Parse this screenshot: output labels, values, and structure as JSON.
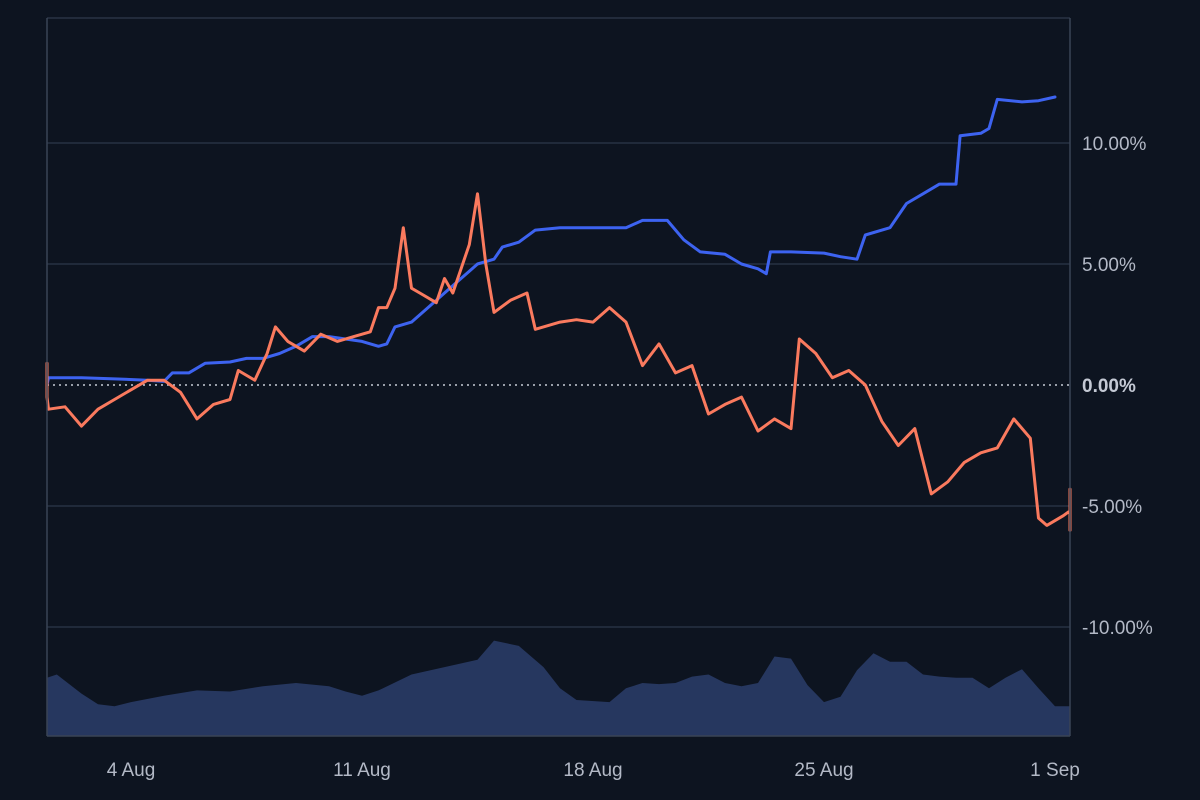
{
  "chart_data": {
    "type": "line",
    "title": "",
    "xlabel": "",
    "ylabel": "",
    "x_range": [
      "2024-08-01",
      "2024-09-01"
    ],
    "ylim": [
      -12,
      15
    ],
    "y_axis_position": "right",
    "y_unit": "%",
    "grid": "horizontal",
    "legend": "none",
    "x_ticks": [
      {
        "date": "2024-08-04",
        "label": "4 Aug"
      },
      {
        "date": "2024-08-11",
        "label": "11 Aug"
      },
      {
        "date": "2024-08-18",
        "label": "18 Aug"
      },
      {
        "date": "2024-08-25",
        "label": "25 Aug"
      },
      {
        "date": "2024-09-01",
        "label": "1 Sep"
      }
    ],
    "y_ticks": [
      {
        "value": 10,
        "label": "10.00%"
      },
      {
        "value": 5,
        "label": "5.00%"
      },
      {
        "value": 0,
        "label": "0.00%"
      },
      {
        "value": -5,
        "label": "-5.00%"
      },
      {
        "value": -10,
        "label": "-10.00%"
      }
    ],
    "zero_line": {
      "style": "dotted",
      "color": "#c7ccd6"
    },
    "series": [
      {
        "color": "#3d63f0",
        "points": [
          [
            "2024-08-01T00:00",
            0.0
          ],
          [
            "2024-08-01T12:00",
            0.3
          ],
          [
            "2024-08-02T12:00",
            0.3
          ],
          [
            "2024-08-03T12:00",
            0.25
          ],
          [
            "2024-08-04T12:00",
            0.2
          ],
          [
            "2024-08-05T00:00",
            0.15
          ],
          [
            "2024-08-05T06:00",
            0.5
          ],
          [
            "2024-08-05T18:00",
            0.5
          ],
          [
            "2024-08-06T06:00",
            0.9
          ],
          [
            "2024-08-07T00:00",
            0.95
          ],
          [
            "2024-08-07T12:00",
            1.1
          ],
          [
            "2024-08-08T00:00",
            1.1
          ],
          [
            "2024-08-08T12:00",
            1.3
          ],
          [
            "2024-08-09T00:00",
            1.6
          ],
          [
            "2024-08-09T12:00",
            2.0
          ],
          [
            "2024-08-10T00:00",
            2.0
          ],
          [
            "2024-08-10T12:00",
            1.9
          ],
          [
            "2024-08-11T00:00",
            1.8
          ],
          [
            "2024-08-11T12:00",
            1.6
          ],
          [
            "2024-08-11T18:00",
            1.7
          ],
          [
            "2024-08-12T00:00",
            2.4
          ],
          [
            "2024-08-12T12:00",
            2.6
          ],
          [
            "2024-08-13T00:00",
            3.2
          ],
          [
            "2024-08-13T12:00",
            3.8
          ],
          [
            "2024-08-14T00:00",
            4.4
          ],
          [
            "2024-08-14T06:00",
            4.7
          ],
          [
            "2024-08-14T12:00",
            5.0
          ],
          [
            "2024-08-15T00:00",
            5.2
          ],
          [
            "2024-08-15T06:00",
            5.7
          ],
          [
            "2024-08-15T18:00",
            5.9
          ],
          [
            "2024-08-16T06:00",
            6.4
          ],
          [
            "2024-08-17T00:00",
            6.5
          ],
          [
            "2024-08-18T00:00",
            6.5
          ],
          [
            "2024-08-19T00:00",
            6.5
          ],
          [
            "2024-08-19T12:00",
            6.8
          ],
          [
            "2024-08-20T06:00",
            6.8
          ],
          [
            "2024-08-20T18:00",
            6.0
          ],
          [
            "2024-08-21T06:00",
            5.5
          ],
          [
            "2024-08-22T00:00",
            5.4
          ],
          [
            "2024-08-22T12:00",
            5.0
          ],
          [
            "2024-08-23T00:00",
            4.8
          ],
          [
            "2024-08-23T06:00",
            4.6
          ],
          [
            "2024-08-23T09:00",
            5.5
          ],
          [
            "2024-08-24T00:00",
            5.5
          ],
          [
            "2024-08-25T00:00",
            5.45
          ],
          [
            "2024-08-25T12:00",
            5.3
          ],
          [
            "2024-08-26T00:00",
            5.2
          ],
          [
            "2024-08-26T06:00",
            6.2
          ],
          [
            "2024-08-27T00:00",
            6.5
          ],
          [
            "2024-08-27T12:00",
            7.5
          ],
          [
            "2024-08-28T00:00",
            7.9
          ],
          [
            "2024-08-28T12:00",
            8.3
          ],
          [
            "2024-08-29T00:00",
            8.3
          ],
          [
            "2024-08-29T03:00",
            10.3
          ],
          [
            "2024-08-29T18:00",
            10.4
          ],
          [
            "2024-08-30T00:00",
            10.6
          ],
          [
            "2024-08-30T06:00",
            11.8
          ],
          [
            "2024-08-31T00:00",
            11.7
          ],
          [
            "2024-08-31T12:00",
            11.75
          ],
          [
            "2024-09-01T00:00",
            11.9
          ]
        ]
      },
      {
        "color": "#fa7a5e",
        "points": [
          [
            "2024-08-01T00:00",
            0.0
          ],
          [
            "2024-08-01T03:00",
            0.9
          ],
          [
            "2024-08-01T06:00",
            -0.5
          ],
          [
            "2024-08-01T12:00",
            -1.0
          ],
          [
            "2024-08-02T00:00",
            -0.9
          ],
          [
            "2024-08-02T12:00",
            -1.7
          ],
          [
            "2024-08-03T00:00",
            -1.0
          ],
          [
            "2024-08-03T12:00",
            -0.6
          ],
          [
            "2024-08-04T00:00",
            -0.2
          ],
          [
            "2024-08-04T12:00",
            0.2
          ],
          [
            "2024-08-05T00:00",
            0.2
          ],
          [
            "2024-08-05T12:00",
            -0.3
          ],
          [
            "2024-08-06T00:00",
            -1.4
          ],
          [
            "2024-08-06T12:00",
            -0.8
          ],
          [
            "2024-08-07T00:00",
            -0.6
          ],
          [
            "2024-08-07T06:00",
            0.6
          ],
          [
            "2024-08-07T18:00",
            0.2
          ],
          [
            "2024-08-08T03:00",
            1.3
          ],
          [
            "2024-08-08T09:00",
            2.4
          ],
          [
            "2024-08-08T18:00",
            1.8
          ],
          [
            "2024-08-09T06:00",
            1.4
          ],
          [
            "2024-08-09T18:00",
            2.1
          ],
          [
            "2024-08-10T06:00",
            1.8
          ],
          [
            "2024-08-10T18:00",
            2.0
          ],
          [
            "2024-08-11T06:00",
            2.2
          ],
          [
            "2024-08-11T12:00",
            3.2
          ],
          [
            "2024-08-11T18:00",
            3.2
          ],
          [
            "2024-08-12T00:00",
            4.0
          ],
          [
            "2024-08-12T06:00",
            6.5
          ],
          [
            "2024-08-12T12:00",
            4.0
          ],
          [
            "2024-08-12T18:00",
            3.8
          ],
          [
            "2024-08-13T06:00",
            3.4
          ],
          [
            "2024-08-13T12:00",
            4.4
          ],
          [
            "2024-08-13T18:00",
            3.8
          ],
          [
            "2024-08-14T06:00",
            5.8
          ],
          [
            "2024-08-14T12:00",
            7.9
          ],
          [
            "2024-08-14T18:00",
            5.0
          ],
          [
            "2024-08-15T00:00",
            3.0
          ],
          [
            "2024-08-15T12:00",
            3.5
          ],
          [
            "2024-08-16T00:00",
            3.8
          ],
          [
            "2024-08-16T06:00",
            2.3
          ],
          [
            "2024-08-17T00:00",
            2.6
          ],
          [
            "2024-08-17T12:00",
            2.7
          ],
          [
            "2024-08-18T00:00",
            2.6
          ],
          [
            "2024-08-18T12:00",
            3.2
          ],
          [
            "2024-08-19T00:00",
            2.6
          ],
          [
            "2024-08-19T12:00",
            0.8
          ],
          [
            "2024-08-20T00:00",
            1.7
          ],
          [
            "2024-08-20T12:00",
            0.5
          ],
          [
            "2024-08-21T00:00",
            0.8
          ],
          [
            "2024-08-21T12:00",
            -1.2
          ],
          [
            "2024-08-22T00:00",
            -0.8
          ],
          [
            "2024-08-22T12:00",
            -0.5
          ],
          [
            "2024-08-23T00:00",
            -1.9
          ],
          [
            "2024-08-23T12:00",
            -1.4
          ],
          [
            "2024-08-24T00:00",
            -1.8
          ],
          [
            "2024-08-24T06:00",
            1.9
          ],
          [
            "2024-08-24T18:00",
            1.3
          ],
          [
            "2024-08-25T06:00",
            0.3
          ],
          [
            "2024-08-25T18:00",
            0.6
          ],
          [
            "2024-08-26T06:00",
            0.0
          ],
          [
            "2024-08-26T18:00",
            -1.5
          ],
          [
            "2024-08-27T06:00",
            -2.5
          ],
          [
            "2024-08-27T18:00",
            -1.8
          ],
          [
            "2024-08-28T06:00",
            -4.5
          ],
          [
            "2024-08-28T18:00",
            -4.0
          ],
          [
            "2024-08-29T06:00",
            -3.2
          ],
          [
            "2024-08-29T18:00",
            -2.8
          ],
          [
            "2024-08-30T06:00",
            -2.6
          ],
          [
            "2024-08-30T18:00",
            -1.4
          ],
          [
            "2024-08-31T06:00",
            -2.2
          ],
          [
            "2024-08-31T12:00",
            -5.5
          ],
          [
            "2024-08-31T18:00",
            -5.8
          ],
          [
            "2024-09-01T06:00",
            -5.4
          ],
          [
            "2024-09-01T12:00",
            -5.2
          ],
          [
            "2024-09-01T18:00",
            -5.1
          ],
          [
            "2024-09-02T00:00",
            -6.0
          ],
          [
            "2024-09-02T03:00",
            -4.3
          ]
        ]
      }
    ],
    "volume": {
      "color": "#2c3d6b",
      "unit": "relative",
      "points": [
        [
          "2024-08-01T00:00",
          0.55
        ],
        [
          "2024-08-01T18:00",
          0.58
        ],
        [
          "2024-08-02T12:00",
          0.4
        ],
        [
          "2024-08-03T00:00",
          0.3
        ],
        [
          "2024-08-03T12:00",
          0.28
        ],
        [
          "2024-08-04T00:00",
          0.32
        ],
        [
          "2024-08-05T00:00",
          0.38
        ],
        [
          "2024-08-06T00:00",
          0.43
        ],
        [
          "2024-08-07T00:00",
          0.42
        ],
        [
          "2024-08-08T00:00",
          0.47
        ],
        [
          "2024-08-09T00:00",
          0.5
        ],
        [
          "2024-08-10T00:00",
          0.47
        ],
        [
          "2024-08-10T12:00",
          0.42
        ],
        [
          "2024-08-11T00:00",
          0.38
        ],
        [
          "2024-08-11T12:00",
          0.43
        ],
        [
          "2024-08-12T12:00",
          0.58
        ],
        [
          "2024-08-13T12:00",
          0.65
        ],
        [
          "2024-08-14T12:00",
          0.72
        ],
        [
          "2024-08-15T00:00",
          0.9
        ],
        [
          "2024-08-15T18:00",
          0.85
        ],
        [
          "2024-08-16T12:00",
          0.65
        ],
        [
          "2024-08-17T00:00",
          0.45
        ],
        [
          "2024-08-17T12:00",
          0.34
        ],
        [
          "2024-08-18T12:00",
          0.32
        ],
        [
          "2024-08-19T00:00",
          0.45
        ],
        [
          "2024-08-19T12:00",
          0.5
        ],
        [
          "2024-08-20T00:00",
          0.49
        ],
        [
          "2024-08-20T12:00",
          0.5
        ],
        [
          "2024-08-21T00:00",
          0.56
        ],
        [
          "2024-08-21T12:00",
          0.58
        ],
        [
          "2024-08-22T00:00",
          0.5
        ],
        [
          "2024-08-22T12:00",
          0.47
        ],
        [
          "2024-08-23T00:00",
          0.5
        ],
        [
          "2024-08-23T12:00",
          0.75
        ],
        [
          "2024-08-24T00:00",
          0.73
        ],
        [
          "2024-08-24T12:00",
          0.48
        ],
        [
          "2024-08-25T00:00",
          0.32
        ],
        [
          "2024-08-25T12:00",
          0.37
        ],
        [
          "2024-08-26T00:00",
          0.62
        ],
        [
          "2024-08-26T12:00",
          0.78
        ],
        [
          "2024-08-27T00:00",
          0.7
        ],
        [
          "2024-08-27T12:00",
          0.7
        ],
        [
          "2024-08-28T00:00",
          0.58
        ],
        [
          "2024-08-28T12:00",
          0.56
        ],
        [
          "2024-08-29T00:00",
          0.55
        ],
        [
          "2024-08-29T12:00",
          0.55
        ],
        [
          "2024-08-30T00:00",
          0.45
        ],
        [
          "2024-08-30T12:00",
          0.55
        ],
        [
          "2024-08-31T00:00",
          0.63
        ],
        [
          "2024-08-31T12:00",
          0.45
        ],
        [
          "2024-09-01T00:00",
          0.28
        ],
        [
          "2024-09-01T12:00",
          0.28
        ],
        [
          "2024-09-02T03:00",
          0.4
        ]
      ]
    }
  }
}
